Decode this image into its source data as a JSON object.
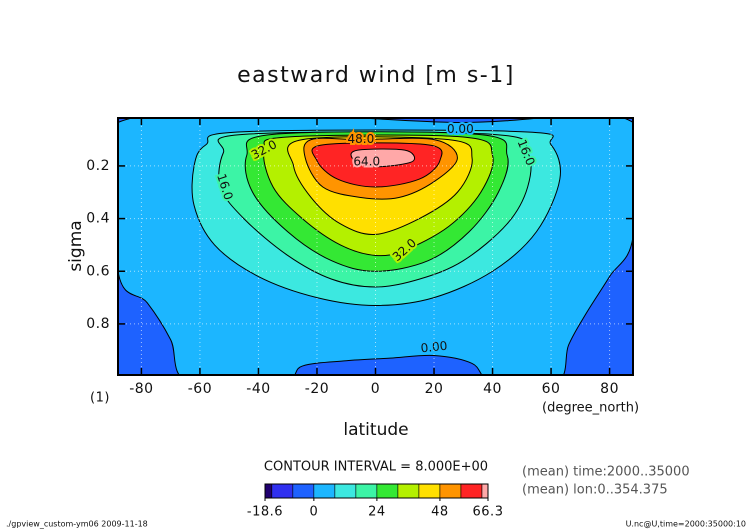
{
  "chart_data": {
    "type": "contour",
    "title": "eastward wind [m s-1]",
    "xlabel": "latitude",
    "ylabel": "sigma",
    "x_unit": "(degree_north)",
    "y_unit": "(1)",
    "xlim": [
      -88,
      88
    ],
    "ylim": [
      0.018,
      0.994
    ],
    "y_reversed": true,
    "xticks": [
      -80,
      -60,
      -40,
      -20,
      0,
      20,
      40,
      60,
      80
    ],
    "yticks": [
      0.2,
      0.4,
      0.6,
      0.8
    ],
    "grid": true,
    "contour_interval_text": "CONTOUR INTERVAL = 8.000E+00",
    "notes": [
      "(mean) time:2000..35000",
      "(mean) lon:0..354.375"
    ],
    "footer_left": "./gpview_custom-ym06  2009-11-18",
    "footer_right": "U.nc@U,time=2000:35000:10",
    "colorbar": {
      "min": -18.6,
      "max": 66.3,
      "boundaries": [
        -16,
        -8,
        0,
        8,
        16,
        24,
        32,
        40,
        48,
        56,
        64
      ],
      "colors": [
        "#200070",
        "#3030f0",
        "#1e62ff",
        "#1cb6ff",
        "#3ce8e0",
        "#3cf4a6",
        "#34e834",
        "#b4f000",
        "#ffe000",
        "#ff9400",
        "#ff2424",
        "#ffa8a8"
      ],
      "ticks": [
        -18.6,
        0,
        24,
        48,
        66.3
      ]
    },
    "levels": [
      {
        "value": 0,
        "label": "0.00",
        "boundary": [
          [
            -88,
            0.035
          ],
          [
            29,
            0.035
          ],
          [
            88,
            0.035
          ],
          [
            88,
            0.47
          ],
          [
            80,
            0.62
          ],
          [
            72,
            0.76
          ],
          [
            66,
            0.88
          ],
          [
            62,
            1.02
          ],
          [
            40,
            1.02
          ],
          [
            33,
            0.95
          ],
          [
            20,
            0.92
          ],
          [
            5,
            0.93
          ],
          [
            -10,
            0.94
          ],
          [
            -25,
            0.96
          ],
          [
            -32,
            1.02
          ],
          [
            -64,
            1.02
          ],
          [
            -70,
            0.86
          ],
          [
            -78,
            0.72
          ],
          [
            -88,
            0.6
          ]
        ]
      },
      {
        "value": 8,
        "boundary": [
          [
            -45,
            0.07
          ],
          [
            50,
            0.07
          ],
          [
            60,
            0.12
          ],
          [
            63,
            0.25
          ],
          [
            55,
            0.45
          ],
          [
            40,
            0.6
          ],
          [
            20,
            0.7
          ],
          [
            0,
            0.73
          ],
          [
            -20,
            0.7
          ],
          [
            -40,
            0.62
          ],
          [
            -55,
            0.5
          ],
          [
            -62,
            0.35
          ],
          [
            -62,
            0.2
          ],
          [
            -58,
            0.12
          ]
        ]
      },
      {
        "value": 16,
        "label": "16.0",
        "boundary": [
          [
            -45,
            0.08
          ],
          [
            40,
            0.08
          ],
          [
            52,
            0.15
          ],
          [
            52,
            0.28
          ],
          [
            45,
            0.42
          ],
          [
            30,
            0.56
          ],
          [
            15,
            0.63
          ],
          [
            0,
            0.66
          ],
          [
            -15,
            0.63
          ],
          [
            -30,
            0.54
          ],
          [
            -45,
            0.4
          ],
          [
            -53,
            0.28
          ],
          [
            -52,
            0.15
          ]
        ]
      },
      {
        "value": 24,
        "boundary": [
          [
            -35,
            0.08
          ],
          [
            35,
            0.08
          ],
          [
            45,
            0.16
          ],
          [
            42,
            0.3
          ],
          [
            32,
            0.45
          ],
          [
            18,
            0.56
          ],
          [
            0,
            0.6
          ],
          [
            -15,
            0.56
          ],
          [
            -30,
            0.45
          ],
          [
            -42,
            0.3
          ],
          [
            -44,
            0.16
          ]
        ]
      },
      {
        "value": 32,
        "label": "32.0",
        "boundary": [
          [
            -30,
            0.09
          ],
          [
            30,
            0.09
          ],
          [
            40,
            0.16
          ],
          [
            36,
            0.3
          ],
          [
            25,
            0.43
          ],
          [
            10,
            0.52
          ],
          [
            0,
            0.54
          ],
          [
            -12,
            0.5
          ],
          [
            -25,
            0.4
          ],
          [
            -35,
            0.28
          ],
          [
            -38,
            0.14
          ]
        ]
      },
      {
        "value": 40,
        "boundary": [
          [
            -25,
            0.1
          ],
          [
            25,
            0.1
          ],
          [
            33,
            0.17
          ],
          [
            28,
            0.3
          ],
          [
            15,
            0.4
          ],
          [
            0,
            0.46
          ],
          [
            -12,
            0.42
          ],
          [
            -22,
            0.32
          ],
          [
            -28,
            0.2
          ]
        ]
      },
      {
        "value": 48,
        "label": "48.0",
        "boundary": [
          [
            -22,
            0.1
          ],
          [
            -5,
            0.1
          ],
          [
            20,
            0.1
          ],
          [
            28,
            0.17
          ],
          [
            20,
            0.26
          ],
          [
            8,
            0.32
          ],
          [
            -5,
            0.32
          ],
          [
            -18,
            0.28
          ],
          [
            -24,
            0.17
          ]
        ]
      },
      {
        "value": 56,
        "boundary": [
          [
            -18,
            0.12
          ],
          [
            18,
            0.12
          ],
          [
            22,
            0.18
          ],
          [
            15,
            0.25
          ],
          [
            0,
            0.28
          ],
          [
            -13,
            0.25
          ],
          [
            -20,
            0.18
          ]
        ]
      },
      {
        "value": 64,
        "label": "64.0",
        "boundary": [
          [
            -6,
            0.14
          ],
          [
            10,
            0.14
          ],
          [
            13,
            0.18
          ],
          [
            5,
            0.2
          ],
          [
            -3,
            0.2
          ],
          [
            -8,
            0.17
          ]
        ]
      }
    ]
  }
}
